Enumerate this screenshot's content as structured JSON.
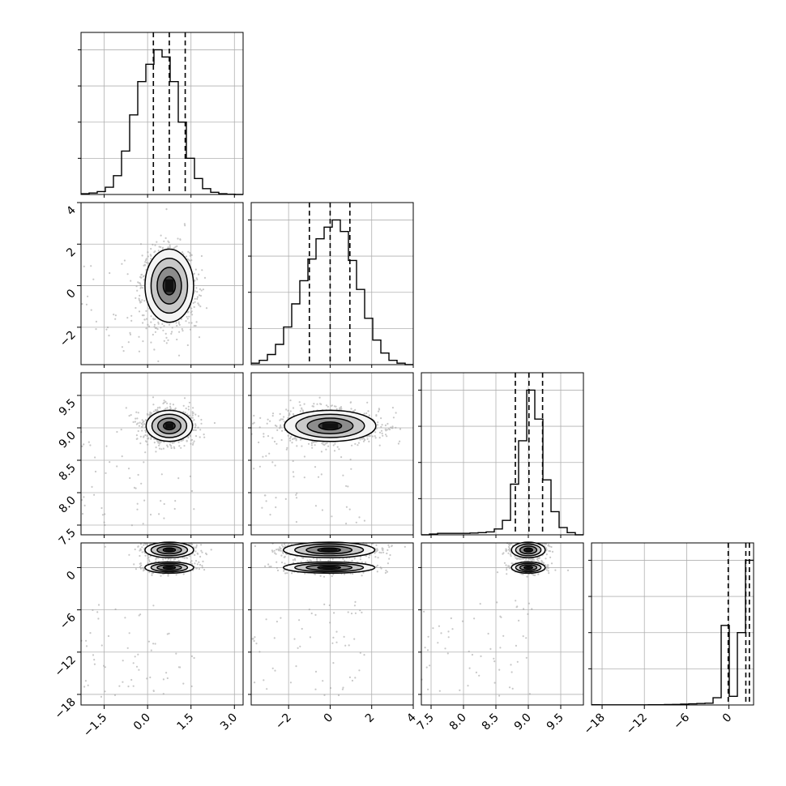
{
  "chart_data": {
    "type": "corner",
    "title": "",
    "style": {
      "grid": true,
      "hist_color": "#000000",
      "density_color": "#000000"
    },
    "parameters": [
      {
        "label": "",
        "range": [
          -2.3,
          3.3
        ],
        "ticks": [
          "−1.5",
          "0.0",
          "1.5",
          "3.0"
        ],
        "tick_values": [
          -1.5,
          0.0,
          1.5,
          3.0
        ],
        "quantiles": [
          0.2,
          0.75,
          1.3
        ]
      },
      {
        "label": "",
        "range": [
          -3.8,
          4.0
        ],
        "ticks": [
          "−2",
          "0",
          "2",
          "4"
        ],
        "tick_values": [
          -2,
          0,
          2,
          4
        ],
        "quantiles": [
          -1.0,
          0.0,
          0.95
        ]
      },
      {
        "label": "",
        "range": [
          7.35,
          9.85
        ],
        "ticks": [
          "7.5",
          "8.0",
          "8.5",
          "9.0",
          "9.5"
        ],
        "tick_values": [
          7.5,
          8.0,
          8.5,
          9.0,
          9.5
        ],
        "quantiles": [
          8.8,
          9.01,
          9.22
        ]
      },
      {
        "label": "",
        "range": [
          -19.5,
          3.5
        ],
        "ticks": [
          "−18",
          "−12",
          "−6",
          "0"
        ],
        "tick_values": [
          -18,
          -12,
          -6,
          0
        ],
        "quantiles": [
          -0.1,
          2.4,
          2.9
        ]
      }
    ],
    "histograms": [
      {
        "bin_edges": [
          -2.3,
          -2.02,
          -1.74,
          -1.46,
          -1.18,
          -0.9,
          -0.62,
          -0.34,
          -0.06,
          0.22,
          0.5,
          0.78,
          1.06,
          1.34,
          1.62,
          1.9,
          2.18,
          2.46,
          2.74,
          3.02,
          3.3
        ],
        "counts": [
          0.005,
          0.01,
          0.02,
          0.05,
          0.13,
          0.3,
          0.55,
          0.78,
          0.9,
          1.0,
          0.95,
          0.78,
          0.5,
          0.25,
          0.11,
          0.04,
          0.015,
          0.005,
          0.002,
          0.0
        ]
      },
      {
        "bin_edges": [
          -3.8,
          -3.41,
          -3.02,
          -2.63,
          -2.24,
          -1.85,
          -1.46,
          -1.07,
          -0.68,
          -0.29,
          0.1,
          0.49,
          0.88,
          1.27,
          1.66,
          2.05,
          2.44,
          2.83,
          3.22,
          3.61,
          4.0
        ],
        "counts": [
          0.01,
          0.03,
          0.07,
          0.14,
          0.26,
          0.42,
          0.58,
          0.73,
          0.87,
          0.95,
          1.0,
          0.92,
          0.72,
          0.52,
          0.32,
          0.17,
          0.08,
          0.03,
          0.01,
          0.0
        ]
      },
      {
        "bin_edges": [
          7.35,
          7.475,
          7.6,
          7.725,
          7.85,
          7.975,
          8.1,
          8.225,
          8.35,
          8.475,
          8.6,
          8.725,
          8.85,
          8.975,
          9.1,
          9.225,
          9.35,
          9.475,
          9.6,
          9.725,
          9.85
        ],
        "counts": [
          0.0,
          0.005,
          0.01,
          0.01,
          0.01,
          0.01,
          0.012,
          0.015,
          0.02,
          0.04,
          0.1,
          0.35,
          0.65,
          1.0,
          0.8,
          0.38,
          0.16,
          0.05,
          0.015,
          0.0
        ]
      },
      {
        "bin_edges": [
          -19.5,
          -18.35,
          -17.2,
          -16.05,
          -14.9,
          -13.75,
          -12.6,
          -11.45,
          -10.3,
          -9.15,
          -8.0,
          -6.85,
          -5.7,
          -4.55,
          -3.4,
          -2.25,
          -1.1,
          0.05,
          1.2,
          2.35,
          3.5
        ],
        "counts": [
          0.002,
          0.001,
          0.001,
          0.001,
          0.001,
          0.001,
          0.001,
          0.002,
          0.002,
          0.003,
          0.004,
          0.006,
          0.008,
          0.01,
          0.012,
          0.05,
          0.55,
          0.06,
          0.5,
          1.0
        ]
      }
    ],
    "pairs": [
      {
        "x": 0,
        "y": 1,
        "centers": [
          [
            0.75,
            0.0
          ]
        ],
        "sigmas": [
          [
            0.42,
            0.88
          ]
        ],
        "weights": [
          1.0
        ]
      },
      {
        "x": 0,
        "y": 2,
        "centers": [
          [
            0.75,
            9.03
          ]
        ],
        "sigmas": [
          [
            0.4,
            0.12
          ]
        ],
        "weights": [
          1.0
        ]
      },
      {
        "x": 1,
        "y": 2,
        "centers": [
          [
            0.0,
            9.03
          ]
        ],
        "sigmas": [
          [
            1.1,
            0.12
          ]
        ],
        "weights": [
          1.0
        ]
      },
      {
        "x": 0,
        "y": 3,
        "centers": [
          [
            0.75,
            2.5
          ],
          [
            0.75,
            0.0
          ]
        ],
        "sigmas": [
          [
            0.42,
            0.55
          ],
          [
            0.42,
            0.4
          ]
        ],
        "weights": [
          0.6,
          0.4
        ]
      },
      {
        "x": 1,
        "y": 3,
        "centers": [
          [
            -0.05,
            2.5
          ],
          [
            -0.05,
            0.0
          ]
        ],
        "sigmas": [
          [
            1.1,
            0.55
          ],
          [
            1.1,
            0.4
          ]
        ],
        "weights": [
          0.6,
          0.4
        ]
      },
      {
        "x": 2,
        "y": 3,
        "centers": [
          [
            9.0,
            2.5
          ],
          [
            9.0,
            0.0
          ]
        ],
        "sigmas": [
          [
            0.13,
            0.55
          ],
          [
            0.13,
            0.4
          ]
        ],
        "weights": [
          0.6,
          0.4
        ]
      }
    ]
  }
}
